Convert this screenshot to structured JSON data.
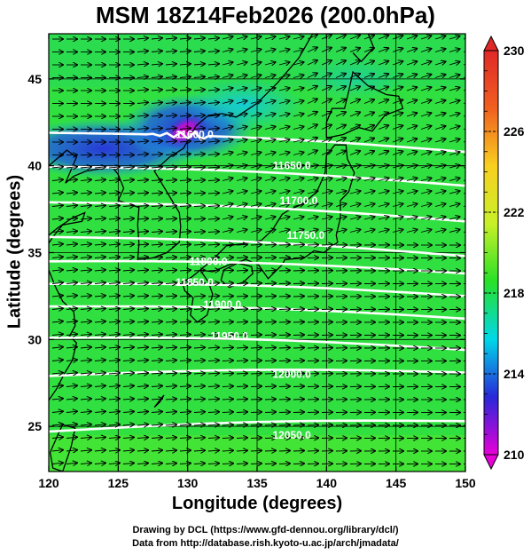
{
  "title": "MSM 18Z14Feb2026 (200.0hPa)",
  "xlabel": "Longitude (degrees)",
  "ylabel": "Latitude  (degrees)",
  "credit_line1": "Drawing by DCL (https://www.gfd-dennou.org/library/dcl/)",
  "credit_line2": "Data from http://database.rish.kyoto-u.ac.jp/arch/jmadata/",
  "chart_data": {
    "type": "heatmap",
    "xlim": [
      120,
      150
    ],
    "ylim": [
      22.4,
      47.6
    ],
    "x_ticks": [
      "120",
      "125",
      "130",
      "135",
      "140",
      "145",
      "150"
    ],
    "y_ticks": [
      "25",
      "30",
      "35",
      "40",
      "45"
    ],
    "colorbar": {
      "range": [
        210,
        230
      ],
      "tick_labels": [
        "230",
        "226",
        "222",
        "218",
        "214",
        "210"
      ],
      "colors": [
        "#e800d8",
        "#2828d8",
        "#00d8e8",
        "#28e028",
        "#c8f028",
        "#f8d020",
        "#f06020",
        "#e02828"
      ]
    },
    "contours": [
      {
        "label": "11600.0",
        "lon": 130.5,
        "lat": 41.8
      },
      {
        "label": "11650.0",
        "lon": 137.5,
        "lat": 40.0
      },
      {
        "label": "11700.0",
        "lon": 138.0,
        "lat": 38.0
      },
      {
        "label": "11750.0",
        "lon": 138.5,
        "lat": 36.0
      },
      {
        "label": "11800.0",
        "lon": 131.5,
        "lat": 34.5
      },
      {
        "label": "11850.0",
        "lon": 130.5,
        "lat": 33.3
      },
      {
        "label": "11900.0",
        "lon": 132.5,
        "lat": 32.0
      },
      {
        "label": "11950.0",
        "lon": 133.0,
        "lat": 30.2
      },
      {
        "label": "12000.0",
        "lon": 137.5,
        "lat": 28.0
      },
      {
        "label": "12050.0",
        "lon": 137.5,
        "lat": 24.5
      }
    ]
  }
}
